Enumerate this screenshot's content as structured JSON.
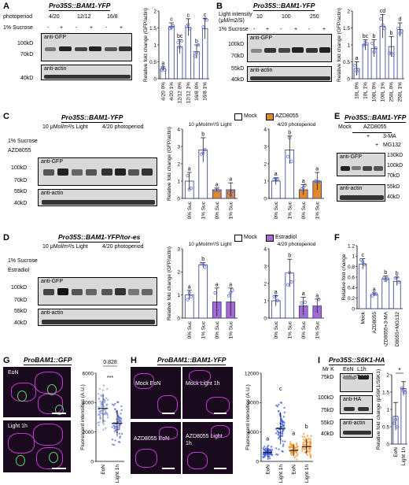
{
  "panels": {
    "A": {
      "letter": "A",
      "title": "Pro35S::BAM1-YFP",
      "row1_label": "photoperiod",
      "row1_values": [
        "4/20",
        "12/12",
        "16/8"
      ],
      "row2_label": "1% Sucrose",
      "row2_values": [
        "-",
        "+",
        "-",
        "+",
        "-",
        "+"
      ],
      "blot_top_label": "anti-GFP",
      "blot_bottom_label": "anti-actin",
      "markers": [
        "100kD",
        "70kD",
        "40kD"
      ]
    },
    "B": {
      "letter": "B",
      "title": "Pro35S::BAM1-YFP",
      "row1_label": "Light intensity (μM/m2/S)",
      "row1_values": [
        "10",
        "100",
        "250"
      ],
      "row2_label": "1% Sucrose",
      "row2_values": [
        "-",
        "+",
        "-",
        "+",
        "-",
        "+"
      ],
      "blot_top_label": "anti-GFP",
      "blot_bottom_label": "anti-actin",
      "markers": [
        "100kD",
        "70kD",
        "55kD",
        "40kD"
      ]
    },
    "C": {
      "letter": "C",
      "title": "Pro35S::BAM1-YFP",
      "cond1": "10 μMol/m²/s Light",
      "cond2": "4/20 photoperiod",
      "row1_label": "1% Sucrose",
      "row2_label": "AZD8055",
      "row1_values": [
        "-",
        "+",
        "-",
        "+",
        "-",
        "+",
        "-",
        "+"
      ],
      "row2_values": [
        "-",
        "-",
        "+",
        "+",
        "-",
        "-",
        "+",
        "+"
      ],
      "blot_top_label": "anti-GFP",
      "blot_bottom_label": "anti-actin",
      "markers": [
        "100kD",
        "70kD",
        "55kD",
        "40kD"
      ],
      "legend": [
        "Mock",
        "AZD8055"
      ]
    },
    "D": {
      "letter": "D",
      "title": "Pro35S::BAM1-YFP/tor-es",
      "cond1": "10 μMol/m²/s Light",
      "cond2": "4/20 photoperiod",
      "row1_label": "1% Sucrose",
      "row2_label": "Estradiol",
      "row1_values": [
        "-",
        "+",
        "-",
        "+",
        "-",
        "+",
        "-",
        "+"
      ],
      "row2_values": [
        "-",
        "-",
        "+",
        "+",
        "-",
        "-",
        "+",
        "+"
      ],
      "blot_top_label": "anti-GFP",
      "blot_bottom_label": "anti-actin",
      "markers": [
        "100kD",
        "70kD",
        "55kD",
        "40kD"
      ],
      "legend": [
        "Mock",
        "Estradiol"
      ]
    },
    "E": {
      "letter": "E",
      "title": "Pro35S::BAM1-YFP",
      "header_mock": "Mock",
      "header_azd": "AZD8055",
      "row1_label": "3-MA",
      "row2_label": "MG132",
      "row1_values": [
        "-",
        "-",
        "+",
        "-"
      ],
      "row2_values": [
        "-",
        "-",
        "-",
        "+"
      ],
      "blot_top_label": "anti-GFP",
      "blot_bottom_label": "anti-actin",
      "markers": [
        "130kD",
        "100kD",
        "70kD",
        "55kD",
        "40kD"
      ]
    },
    "F": {
      "letter": "F"
    },
    "G": {
      "letter": "G",
      "title": "ProBAM1::GFP",
      "labels": [
        "EoN",
        "Light 1h"
      ]
    },
    "H": {
      "letter": "H",
      "title": "ProBAM1::BAM1-YFP",
      "labels": [
        "Mock EoN",
        "Mock Light 1h",
        "AZD8055 EoN",
        "AZD8055 Light 1h"
      ]
    },
    "I": {
      "letter": "I",
      "title": "Pro35S::S6K1-HA",
      "mr_label": "Mr K",
      "lanes": [
        "EoN",
        "L1h"
      ],
      "blots": [
        "anti-pT449",
        "anti-HA",
        "anti-actin"
      ],
      "markers": [
        "75kD",
        "100kD",
        "75kD",
        "55kD",
        "40kD"
      ]
    }
  },
  "chart_data": [
    {
      "id": "A",
      "type": "bar",
      "categories": [
        "4/20 0%",
        "4/20 1%",
        "12/12 0%",
        "12/12 1%",
        "16/8 0%",
        "16/8 1%"
      ],
      "values": [
        0.3,
        1.55,
        0.95,
        1.52,
        0.8,
        1.48
      ],
      "errors": [
        0.05,
        0.1,
        0.2,
        0.25,
        0.2,
        0.3
      ],
      "letters": [
        "a",
        "c",
        "bc",
        "c",
        "b",
        "c"
      ],
      "ylabel": "Relative fold change (GFP/actin)",
      "ylim": [
        0,
        2
      ],
      "yticks": [
        0,
        0.5,
        1,
        1.5,
        2
      ]
    },
    {
      "id": "B",
      "type": "bar",
      "categories": [
        "10L 0%",
        "10L 1%",
        "100L 0%",
        "100L 1%",
        "250L 0%",
        "250L 1%"
      ],
      "values": [
        0.3,
        1.0,
        0.9,
        1.55,
        0.95,
        1.45
      ],
      "errors": [
        0.2,
        0.15,
        0.25,
        0.35,
        0.3,
        0.2
      ],
      "letters": [
        "a",
        "bc",
        "b",
        "cd",
        "b",
        "d"
      ],
      "ylabel": "Relative fold change (GFP/actin)",
      "ylim": [
        0,
        2
      ],
      "yticks": [
        0,
        0.5,
        1,
        1.5,
        2
      ]
    },
    {
      "id": "C1",
      "type": "bar",
      "title": "10 μMol/m²/S Light",
      "categories": [
        "0% Suc",
        "1% Suc",
        "0% Suc",
        "1% Suc"
      ],
      "groups": [
        "Mock",
        "Mock",
        "AZD8055",
        "AZD8055"
      ],
      "values": [
        1.0,
        2.8,
        0.5,
        0.5
      ],
      "errors": [
        0.5,
        0.7,
        0.1,
        0.4
      ],
      "letters": [
        "a",
        "b",
        "a",
        "a"
      ],
      "ylabel": "Relative fold change (GFP/actin)",
      "ylim": [
        0,
        4
      ],
      "yticks": [
        0,
        1,
        2,
        3,
        4
      ]
    },
    {
      "id": "C2",
      "type": "bar",
      "title": "4/20 photoperiod",
      "categories": [
        "0% Suc",
        "1% Suc",
        "0% Suc",
        "1% Suc"
      ],
      "groups": [
        "Mock",
        "Mock",
        "AZD8055",
        "AZD8055"
      ],
      "values": [
        1.0,
        2.8,
        0.5,
        1.0
      ],
      "errors": [
        0.2,
        0.8,
        0.3,
        0.5
      ],
      "letters": [
        "a",
        "b",
        "a",
        "a"
      ],
      "ylim": [
        0,
        4
      ],
      "yticks": [
        0,
        1,
        2,
        3,
        4
      ]
    },
    {
      "id": "D1",
      "type": "bar",
      "title": "10 μMol/m²/S Light",
      "categories": [
        "0% Suc",
        "1% Suc",
        "0% Suc",
        "1% Suc"
      ],
      "groups": [
        "Mock",
        "Mock",
        "Estradiol",
        "Estradiol"
      ],
      "values": [
        1.0,
        2.3,
        0.7,
        0.7
      ],
      "errors": [
        0.2,
        0.1,
        0.6,
        0.6
      ],
      "letters": [
        "a",
        "b",
        "a",
        "a"
      ],
      "ylabel": "Relative fold change (GFP/actin)",
      "ylim": [
        0,
        3
      ],
      "yticks": [
        0,
        1,
        2,
        3
      ]
    },
    {
      "id": "D2",
      "type": "bar",
      "title": "4/20 photoperiod",
      "categories": [
        "0% Suc",
        "1% Suc",
        "0% Suc",
        "1% Suc"
      ],
      "groups": [
        "Mock",
        "Mock",
        "Estradiol",
        "Estradiol"
      ],
      "values": [
        1.0,
        2.6,
        0.7,
        0.7
      ],
      "errors": [
        0.3,
        0.8,
        0.5,
        0.4
      ],
      "letters": [
        "a",
        "b",
        "a",
        "a"
      ],
      "ylim": [
        0,
        4
      ],
      "yticks": [
        0,
        1,
        2,
        3,
        4
      ]
    },
    {
      "id": "F",
      "type": "bar",
      "categories": [
        "Mock",
        "AZD8055",
        "AZD8055+3-MA",
        "AZD8055+MG132"
      ],
      "values": [
        0.85,
        0.27,
        0.57,
        0.52
      ],
      "errors": [
        0.1,
        0.03,
        0.05,
        0.08
      ],
      "letters": [
        "c",
        "a",
        "b",
        "b"
      ],
      "ylabel": "Relative fold change",
      "ylim": [
        0,
        1.2
      ],
      "yticks": [
        0,
        0.2,
        0.4,
        0.6,
        0.8,
        1.0,
        1.2
      ]
    },
    {
      "id": "G",
      "type": "scatter",
      "categories": [
        "EoN",
        "Light 1h"
      ],
      "means": [
        3600,
        2600
      ],
      "sds": [
        1000,
        900
      ],
      "annotation_value": "0.828",
      "annotation_sig": "***",
      "ylabel": "Fluorescent intensities (A.U.)",
      "ylim": [
        0,
        6000
      ],
      "yticks": [
        0,
        2000,
        4000,
        6000
      ]
    },
    {
      "id": "H",
      "type": "scatter",
      "categories": [
        "EoN",
        "Light 1h",
        "EoN",
        "Light 1h"
      ],
      "means": [
        1200,
        4500,
        1500,
        2000
      ],
      "sds": [
        600,
        2200,
        800,
        1000
      ],
      "letters": [
        "a",
        "c",
        "a",
        "b"
      ],
      "ylabel": "Fluorescent intensities (A.U.)",
      "ylim": [
        0,
        12000
      ],
      "yticks": [
        0,
        4000,
        8000,
        12000
      ]
    },
    {
      "id": "I",
      "type": "bar",
      "categories": [
        "EoN",
        "Light 1h"
      ],
      "values": [
        0.8,
        1.6
      ],
      "errors": [
        0.4,
        0.2
      ],
      "annotation_sig": "*",
      "ylabel": "Relative fold change (pS6K1/S6K1)",
      "ylim": [
        0,
        2.0
      ],
      "yticks": [
        0,
        0.5,
        1.0,
        1.5,
        2.0
      ]
    }
  ],
  "colors": {
    "bar_outline": "#2e3a8c",
    "dot": "#5b6fd6",
    "azd": "#e08a2c",
    "estradiol": "#a86ad1",
    "mock_fill": "#ffffff",
    "orange_dots": "#f29a3a",
    "blue_dots": "#3c5ee6",
    "light_dots": "#8fa2e6"
  }
}
